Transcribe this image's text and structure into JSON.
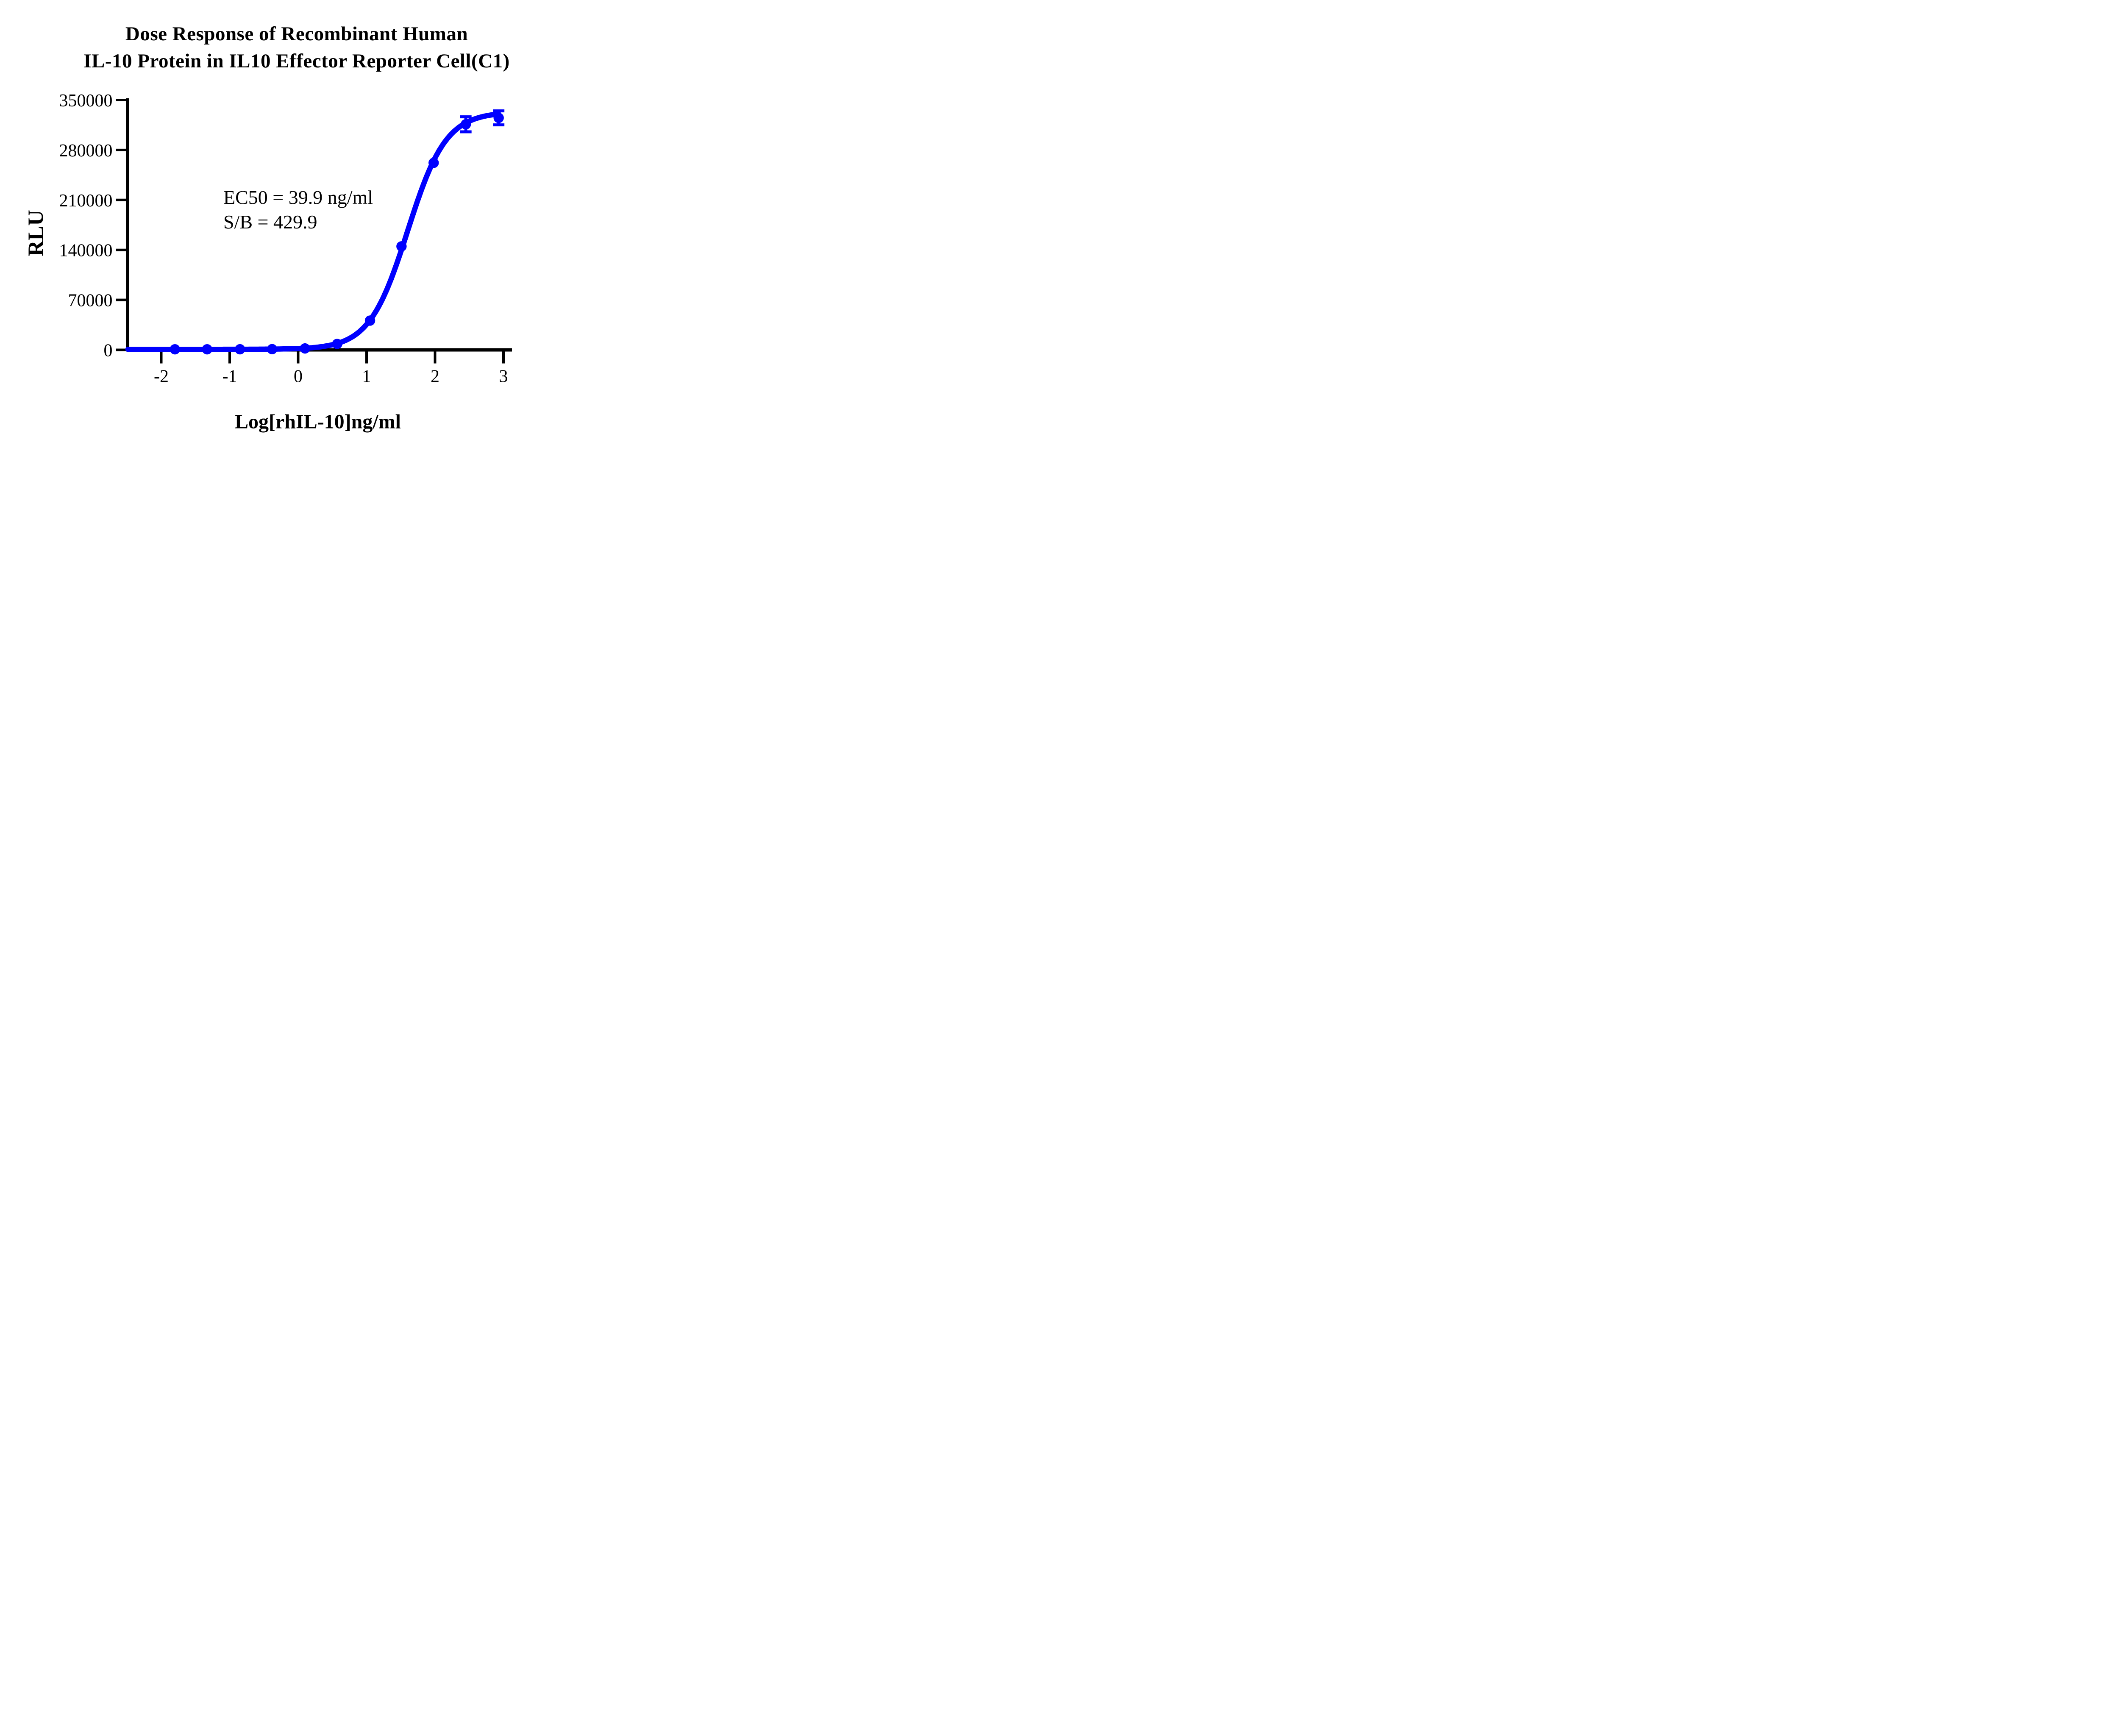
{
  "figure": {
    "title_line1": "Dose Response of Recombinant Human",
    "title_line2": "IL-10 Protein in IL10 Effector Reporter Cell(C1)"
  },
  "annotation": {
    "line1": "EC50 = 39.9 ng/ml",
    "line2": "S/B = 429.9"
  },
  "colors": {
    "series": "#0000FF",
    "axis": "#000000",
    "text": "#000000",
    "background": "#FFFFFF"
  },
  "chart_data": {
    "type": "line",
    "title": "Dose Response of Recombinant Human IL-10 Protein in IL10 Effector Reporter Cell(C1)",
    "xlabel": "Log[rhIL-10]ng/ml",
    "ylabel": "RLU",
    "x_ticks": [
      -2,
      -1,
      0,
      1,
      2,
      3
    ],
    "y_ticks": [
      0,
      70000,
      140000,
      210000,
      280000,
      350000
    ],
    "xlim": [
      -2.49,
      3.12
    ],
    "ylim": [
      0,
      350000
    ],
    "grid": false,
    "legend": "none",
    "series": [
      {
        "name": "rhIL-10",
        "color": "#0000FF",
        "marker": "circle",
        "x": [
          -1.8,
          -1.33,
          -0.85,
          -0.38,
          0.1,
          0.57,
          1.05,
          1.51,
          1.98,
          2.45,
          2.93
        ],
        "y": [
          800,
          800,
          850,
          1000,
          2000,
          8300,
          41000,
          145000,
          262000,
          316000,
          325000
        ],
        "y_error": [
          null,
          null,
          null,
          null,
          null,
          null,
          null,
          null,
          null,
          10500,
          9800
        ]
      }
    ],
    "fit": {
      "model": "four-parameter logistic",
      "log_ec50": 1.601,
      "hill_slope": 1.55,
      "bottom": 780,
      "top": 333300
    },
    "annotations": [
      "EC50 = 39.9 ng/ml",
      "S/B = 429.9"
    ]
  }
}
